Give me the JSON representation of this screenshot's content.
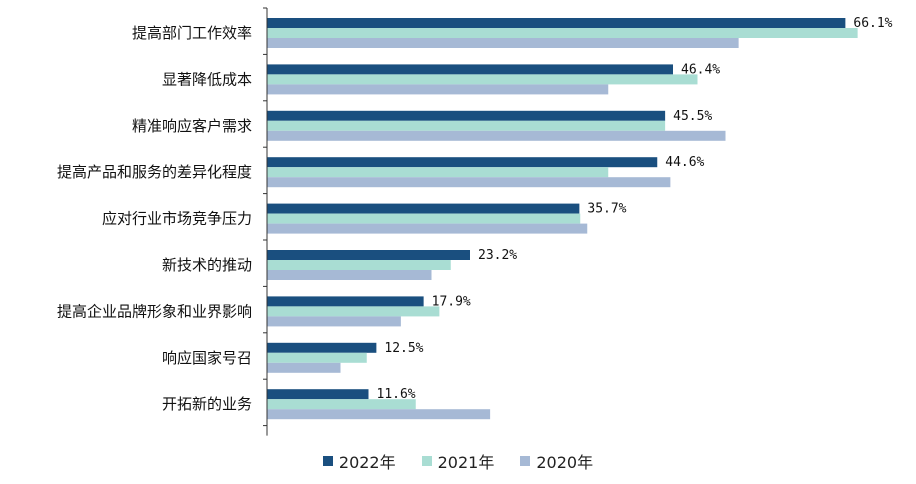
{
  "chart_data": {
    "type": "bar",
    "orientation": "horizontal",
    "categories": [
      "提高部门工作效率",
      "显著降低成本",
      "精准响应客户需求",
      "提高产品和服务的差异化程度",
      "应对行业市场竞争压力",
      "新技术的推动",
      "提高企业品牌形象和业界影响",
      "响应国家号召",
      "开拓新的业务"
    ],
    "series": [
      {
        "name": "2022年",
        "color": "#1a4f7f",
        "values": [
          66.1,
          46.4,
          45.5,
          44.6,
          35.7,
          23.2,
          17.9,
          12.5,
          11.6
        ]
      },
      {
        "name": "2021年",
        "color": "#a9ddd3",
        "values": [
          67.5,
          49.2,
          45.5,
          39.0,
          35.8,
          21.0,
          19.7,
          11.4,
          17.0
        ]
      },
      {
        "name": "2020年",
        "color": "#a6b9d5",
        "values": [
          53.9,
          39.0,
          52.4,
          46.1,
          36.6,
          18.8,
          15.3,
          8.4,
          25.5
        ]
      }
    ],
    "data_labels": [
      "66.1%",
      "46.4%",
      "45.5%",
      "44.6%",
      "35.7%",
      "23.2%",
      "17.9%",
      "12.5%",
      "11.6%"
    ],
    "xlim": [
      0,
      70
    ],
    "legend_position": "bottom",
    "grid": false
  }
}
